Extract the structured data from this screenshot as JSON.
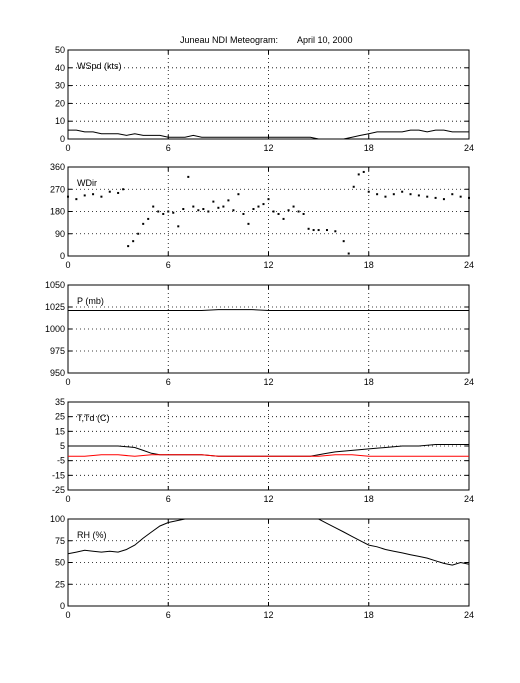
{
  "figure": {
    "title_left": "Juneau NDI Meteogram:",
    "title_right": "April 10, 2000"
  },
  "chart_data": [
    {
      "type": "line",
      "label": "WSpd (kts)",
      "xlim": [
        0,
        24
      ],
      "ylim": [
        0,
        50
      ],
      "xticks": [
        0,
        6,
        12,
        18,
        24
      ],
      "yticks": [
        0,
        10,
        20,
        30,
        40,
        50
      ],
      "grid": true,
      "series": [
        {
          "color": "#000000",
          "x": [
            0,
            0.5,
            1,
            1.5,
            2,
            2.5,
            3,
            3.5,
            4,
            4.5,
            5,
            5.5,
            6,
            6.5,
            7,
            7.5,
            8,
            8.5,
            9,
            9.5,
            10,
            10.5,
            11,
            11.5,
            12,
            12.5,
            13,
            13.5,
            14,
            14.5,
            15,
            15.5,
            16,
            16.5,
            17,
            17.5,
            18,
            18.5,
            19,
            19.5,
            20,
            20.5,
            21,
            21.5,
            22,
            22.5,
            23,
            23.5,
            24
          ],
          "y": [
            5,
            5,
            4,
            4,
            3,
            3,
            3,
            2,
            3,
            2,
            2,
            2,
            1,
            1,
            1,
            2,
            1,
            1,
            1,
            1,
            1,
            1,
            1,
            1,
            1,
            1,
            1,
            1,
            1,
            1,
            0,
            0,
            0,
            0,
            1,
            2,
            3,
            4,
            4,
            4,
            4,
            5,
            5,
            4,
            5,
            5,
            4,
            4,
            4
          ]
        }
      ]
    },
    {
      "type": "scatter",
      "label": "WDir",
      "xlim": [
        0,
        24
      ],
      "ylim": [
        0,
        360
      ],
      "xticks": [
        0,
        6,
        12,
        18,
        24
      ],
      "yticks": [
        0,
        90,
        180,
        270,
        360
      ],
      "grid": true,
      "series": [
        {
          "color": "#000000",
          "x": [
            0,
            0.5,
            1,
            1.5,
            2,
            2.5,
            3,
            3.3,
            3.6,
            3.9,
            4.2,
            4.5,
            4.8,
            5.1,
            5.4,
            5.7,
            6,
            6.3,
            6.6,
            6.9,
            7.2,
            7.5,
            7.8,
            8.1,
            8.4,
            8.7,
            9,
            9.3,
            9.6,
            9.9,
            10.2,
            10.5,
            10.8,
            11.1,
            11.4,
            11.7,
            12,
            12.3,
            12.6,
            12.9,
            13.2,
            13.5,
            13.8,
            14.1,
            14.4,
            14.7,
            15,
            15.5,
            16,
            16.5,
            16.8,
            17.1,
            17.4,
            17.7,
            18,
            18.5,
            19,
            19.5,
            20,
            20.5,
            21,
            21.5,
            22,
            22.5,
            23,
            23.5,
            24
          ],
          "y": [
            240,
            230,
            245,
            250,
            240,
            260,
            255,
            270,
            40,
            60,
            90,
            130,
            150,
            200,
            180,
            170,
            180,
            175,
            120,
            190,
            320,
            200,
            185,
            190,
            180,
            220,
            195,
            200,
            225,
            185,
            250,
            170,
            130,
            190,
            200,
            210,
            230,
            180,
            170,
            150,
            185,
            200,
            180,
            170,
            110,
            105,
            105,
            105,
            100,
            60,
            10,
            280,
            330,
            340,
            260,
            250,
            240,
            250,
            260,
            250,
            245,
            240,
            235,
            230,
            250,
            240,
            235
          ]
        }
      ]
    },
    {
      "type": "line",
      "label": "P (mb)",
      "xlim": [
        0,
        24
      ],
      "ylim": [
        950,
        1050
      ],
      "xticks": [
        0,
        6,
        12,
        18,
        24
      ],
      "yticks": [
        950,
        975,
        1000,
        1025,
        1050
      ],
      "grid": true,
      "series": [
        {
          "color": "#000000",
          "x": [
            0,
            3,
            6,
            8,
            9,
            10,
            11,
            12,
            13,
            15,
            18,
            21,
            24
          ],
          "y": [
            1021,
            1021,
            1021,
            1021,
            1022,
            1022,
            1022,
            1021,
            1021,
            1021,
            1021,
            1021,
            1021
          ]
        }
      ]
    },
    {
      "type": "line",
      "label": "T,Td (C)",
      "xlim": [
        0,
        24
      ],
      "ylim": [
        -25,
        35
      ],
      "xticks": [
        0,
        6,
        12,
        18,
        24
      ],
      "yticks": [
        -25,
        -15,
        -5,
        5,
        15,
        25,
        35
      ],
      "grid": true,
      "series": [
        {
          "color": "#000000",
          "x": [
            0,
            1,
            2,
            3,
            4,
            4.5,
            5,
            5.5,
            6,
            7,
            8,
            9,
            10,
            11,
            12,
            13,
            14,
            14.5,
            15,
            15.5,
            16,
            17,
            18,
            19,
            20,
            21,
            22,
            23,
            24
          ],
          "y": [
            5,
            5,
            5,
            5,
            4,
            2,
            0,
            -1,
            -1,
            -1,
            -1,
            -2,
            -2,
            -2,
            -2,
            -2,
            -2,
            -2,
            -1,
            0,
            1,
            2,
            3,
            4,
            5,
            5,
            6,
            6,
            6
          ]
        },
        {
          "color": "#ff0000",
          "x": [
            0,
            1,
            2,
            3,
            4,
            5,
            6,
            7,
            8,
            9,
            10,
            11,
            12,
            13,
            14,
            15,
            16,
            17,
            18,
            19,
            20,
            21,
            22,
            23,
            24
          ],
          "y": [
            -2,
            -2,
            -1,
            -1,
            -2,
            -1,
            -1,
            -1,
            -1,
            -2,
            -2,
            -2,
            -2,
            -2,
            -2,
            -2,
            -1,
            -1,
            -2,
            -2,
            -2,
            -2,
            -2,
            -2,
            -2
          ]
        }
      ]
    },
    {
      "type": "line",
      "label": "RH (%)",
      "xlim": [
        0,
        24
      ],
      "ylim": [
        0,
        100
      ],
      "xticks": [
        0,
        6,
        12,
        18,
        24
      ],
      "yticks": [
        0,
        25,
        50,
        75,
        100
      ],
      "grid": true,
      "series": [
        {
          "color": "#000000",
          "x": [
            0,
            0.5,
            1,
            1.5,
            2,
            2.5,
            3,
            3.5,
            4,
            4.5,
            5,
            5.5,
            6,
            6.5,
            7,
            8,
            9,
            10,
            11,
            12,
            13,
            14,
            15,
            15.5,
            16,
            16.5,
            17,
            17.5,
            18,
            18.5,
            19,
            19.5,
            20,
            20.5,
            21,
            21.5,
            22,
            22.5,
            23,
            23.5,
            24
          ],
          "y": [
            60,
            62,
            64,
            63,
            62,
            63,
            62,
            65,
            70,
            78,
            85,
            92,
            96,
            98,
            100,
            100,
            100,
            100,
            100,
            100,
            100,
            100,
            100,
            95,
            90,
            85,
            80,
            75,
            70,
            68,
            65,
            63,
            61,
            59,
            57,
            55,
            52,
            49,
            47,
            50,
            48
          ]
        }
      ]
    }
  ]
}
